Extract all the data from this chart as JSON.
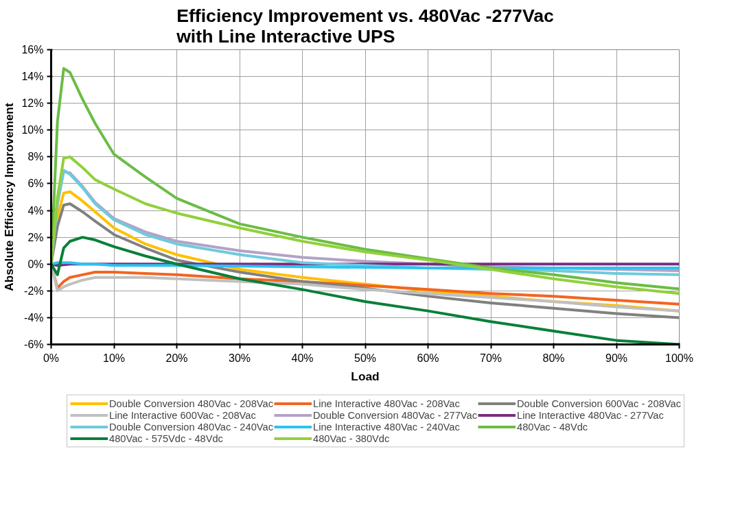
{
  "chart_data": {
    "type": "line",
    "title": "Efficiency Improvement vs. 480Vac -277Vac\nwith Line Interactive UPS",
    "xlabel": "Load",
    "ylabel": "Absolute Efficiency Improvement",
    "x": [
      0,
      1,
      2,
      3,
      5,
      7,
      10,
      15,
      20,
      30,
      40,
      50,
      60,
      70,
      80,
      90,
      100
    ],
    "series": [
      {
        "name": "Double Conversion 480Vac - 208Vac",
        "color": "#ffc000",
        "values": [
          0,
          3.5,
          5.3,
          5.4,
          4.7,
          3.9,
          2.7,
          1.5,
          0.7,
          -0.4,
          -1.0,
          -1.5,
          -2.0,
          -2.4,
          -2.8,
          -3.1,
          -3.5
        ]
      },
      {
        "name": "Line Interactive 480Vac - 208Vac",
        "color": "#f26522",
        "values": [
          0,
          -1.8,
          -1.3,
          -1.0,
          -0.8,
          -0.6,
          -0.6,
          -0.7,
          -0.8,
          -1.1,
          -1.3,
          -1.6,
          -1.9,
          -2.2,
          -2.4,
          -2.7,
          -3.0
        ]
      },
      {
        "name": "Double Conversion 600Vac - 208Vac",
        "color": "#808080",
        "values": [
          0,
          2.8,
          4.4,
          4.5,
          3.9,
          3.2,
          2.2,
          1.2,
          0.3,
          -0.6,
          -1.3,
          -1.8,
          -2.4,
          -2.9,
          -3.3,
          -3.7,
          -4.0
        ]
      },
      {
        "name": "Line Interactive 600Vac - 208Vac",
        "color": "#c0c0c0",
        "values": [
          0,
          -2.0,
          -1.7,
          -1.5,
          -1.2,
          -1.0,
          -1.0,
          -1.0,
          -1.1,
          -1.3,
          -1.5,
          -1.9,
          -2.2,
          -2.5,
          -2.8,
          -3.2,
          -3.5
        ]
      },
      {
        "name": "Double Conversion 480Vac - 277Vac",
        "color": "#b3a2c7",
        "values": [
          0,
          4.5,
          6.9,
          6.8,
          5.8,
          4.6,
          3.4,
          2.4,
          1.7,
          1.0,
          0.5,
          0.2,
          0.0,
          -0.2,
          -0.3,
          -0.4,
          -0.5
        ]
      },
      {
        "name": "Line Interactive 480Vac - 277Vac",
        "color": "#7b2c80",
        "values": [
          0,
          -0.1,
          -0.05,
          0,
          0,
          0,
          0,
          0,
          0,
          0,
          0,
          0,
          0,
          0,
          0,
          0,
          0
        ]
      },
      {
        "name": "Double Conversion 480Vac - 240Vac",
        "color": "#6dcbdc",
        "values": [
          0,
          4.5,
          7.0,
          6.7,
          5.7,
          4.5,
          3.3,
          2.2,
          1.5,
          0.7,
          0.1,
          -0.1,
          -0.3,
          -0.4,
          -0.5,
          -0.7,
          -0.8
        ]
      },
      {
        "name": "Line Interactive 480Vac - 240Vac",
        "color": "#2dc3f0",
        "values": [
          0,
          0.1,
          0.1,
          0.1,
          0.0,
          0.0,
          -0.1,
          -0.1,
          -0.1,
          -0.15,
          -0.2,
          -0.25,
          -0.3,
          -0.3,
          -0.3,
          -0.3,
          -0.3
        ]
      },
      {
        "name": "480Vac - 48Vdc",
        "color": "#6abd45",
        "values": [
          0,
          10.6,
          14.6,
          14.3,
          12.3,
          10.5,
          8.2,
          6.5,
          4.9,
          3.0,
          2.0,
          1.1,
          0.4,
          -0.3,
          -0.8,
          -1.4,
          -1.85
        ]
      },
      {
        "name": "480Vac - 575Vdc - 48Vdc",
        "color": "#0a7f3a",
        "values": [
          0,
          -0.8,
          1.2,
          1.7,
          2.0,
          1.8,
          1.3,
          0.6,
          0.0,
          -1.1,
          -1.9,
          -2.8,
          -3.5,
          -4.3,
          -5.0,
          -5.7,
          -6.0
        ]
      },
      {
        "name": "480Vac - 380Vdc",
        "color": "#92d03c",
        "values": [
          0,
          5.0,
          7.9,
          8.0,
          7.2,
          6.3,
          5.6,
          4.5,
          3.8,
          2.7,
          1.7,
          0.9,
          0.3,
          -0.4,
          -1.1,
          -1.7,
          -2.2
        ]
      }
    ],
    "xlim": [
      0,
      100
    ],
    "ylim": [
      -6,
      16
    ],
    "xticks": [
      {
        "value": 0,
        "label": "0%"
      },
      {
        "value": 10,
        "label": "10%"
      },
      {
        "value": 20,
        "label": "20%"
      },
      {
        "value": 30,
        "label": "30%"
      },
      {
        "value": 40,
        "label": "40%"
      },
      {
        "value": 50,
        "label": "50%"
      },
      {
        "value": 60,
        "label": "60%"
      },
      {
        "value": 70,
        "label": "70%"
      },
      {
        "value": 80,
        "label": "80%"
      },
      {
        "value": 90,
        "label": "90%"
      },
      {
        "value": 100,
        "label": "100%"
      }
    ],
    "yticks": [
      {
        "value": -6,
        "label": "-6%"
      },
      {
        "value": -4,
        "label": "-4%"
      },
      {
        "value": -2,
        "label": "-2%"
      },
      {
        "value": 0,
        "label": "0%"
      },
      {
        "value": 2,
        "label": "2%"
      },
      {
        "value": 4,
        "label": "4%"
      },
      {
        "value": 6,
        "label": "6%"
      },
      {
        "value": 8,
        "label": "8%"
      },
      {
        "value": 10,
        "label": "10%"
      },
      {
        "value": 12,
        "label": "12%"
      },
      {
        "value": 14,
        "label": "14%"
      },
      {
        "value": 16,
        "label": "16%"
      }
    ],
    "grid": true,
    "legend": "bottom",
    "marker": "none",
    "line_style": "solid"
  }
}
